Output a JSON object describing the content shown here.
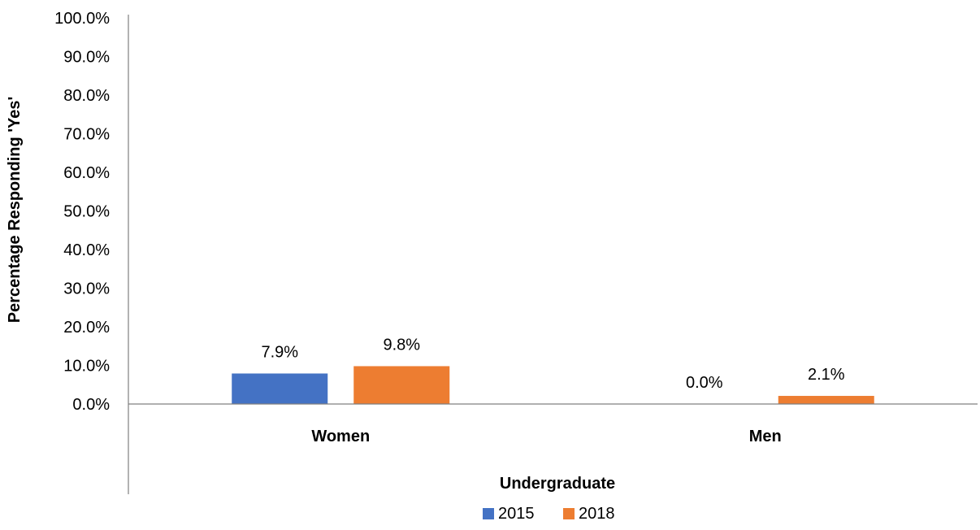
{
  "chart_data": {
    "type": "bar",
    "categories": [
      "Women",
      "Men"
    ],
    "series": [
      {
        "name": "2015",
        "values": [
          7.9,
          0.0
        ],
        "labels": [
          "7.9%",
          "0.0%"
        ],
        "color": "#4472C4"
      },
      {
        "name": "2018",
        "values": [
          9.8,
          2.1
        ],
        "labels": [
          "9.8%",
          "2.1%"
        ],
        "color": "#ED7D31"
      }
    ],
    "yticks": [
      "0.0%",
      "10.0%",
      "20.0%",
      "30.0%",
      "40.0%",
      "50.0%",
      "60.0%",
      "70.0%",
      "80.0%",
      "90.0%",
      "100.0%"
    ],
    "ylim": [
      0,
      100
    ],
    "xlabel": "Undergraduate",
    "ylabel": "Percentage Responding 'Yes'",
    "legend_position": "bottom",
    "grid": false
  }
}
